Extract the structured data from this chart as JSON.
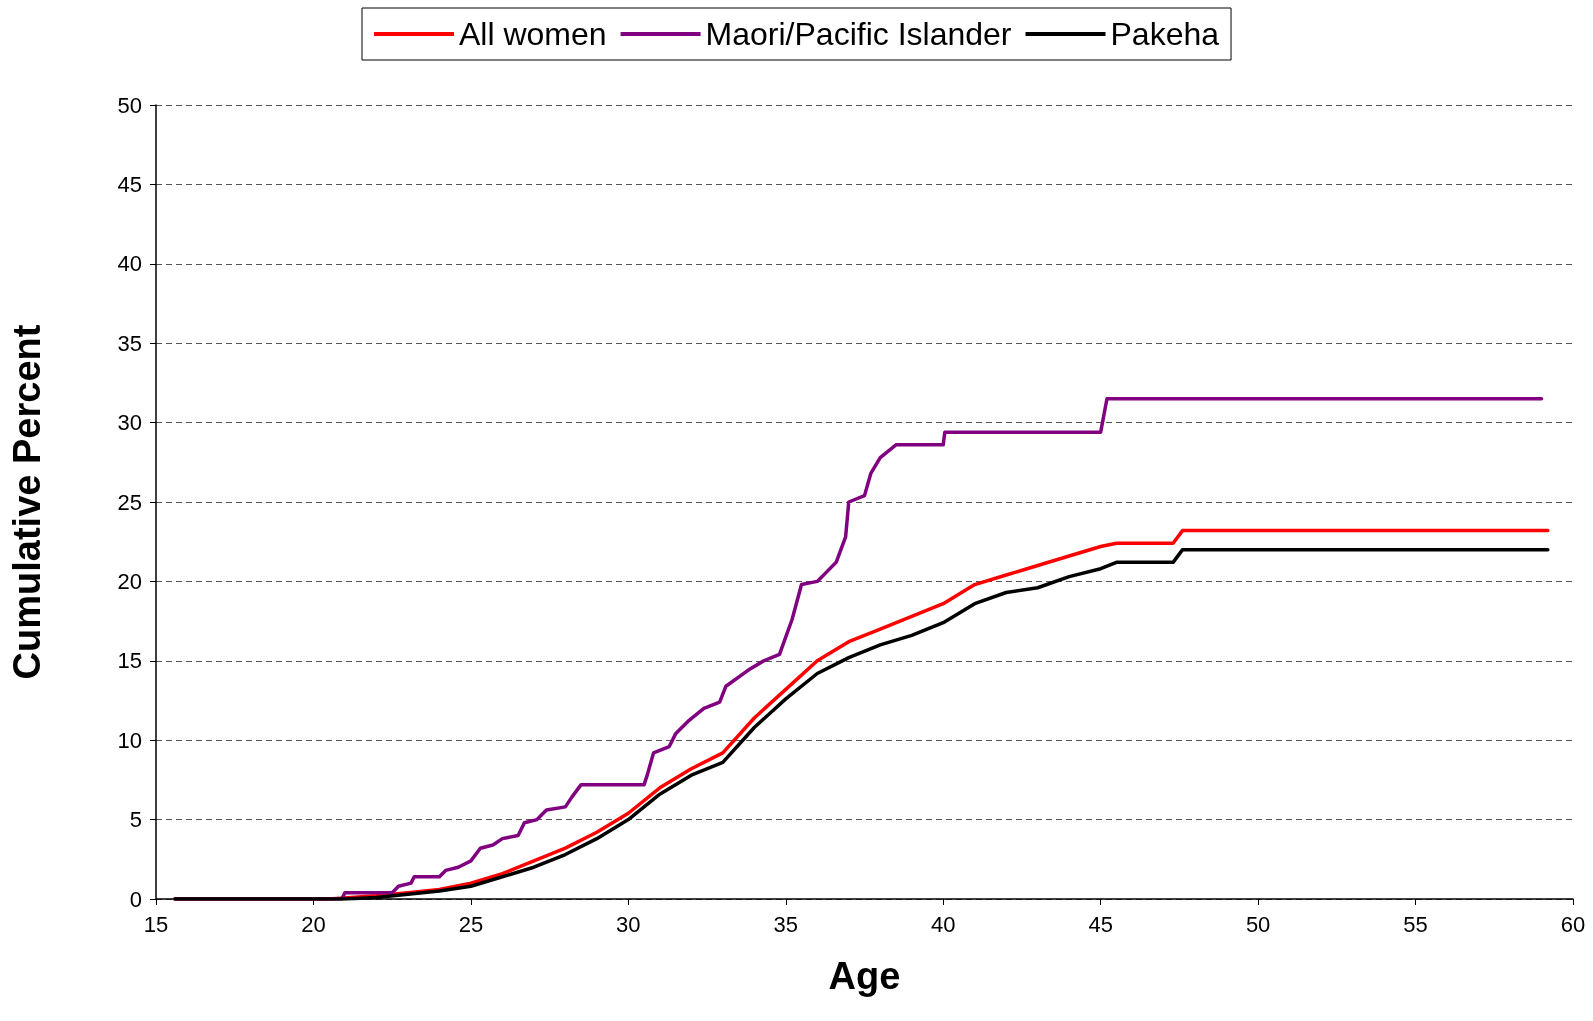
{
  "chart_data": {
    "type": "line",
    "xlabel": "Age",
    "ylabel": "Cumulative Percent",
    "xlim": [
      15,
      60
    ],
    "xticks": [
      15,
      20,
      25,
      30,
      35,
      40,
      45,
      50,
      55,
      60
    ],
    "ylim": [
      0,
      50
    ],
    "yticks": [
      0,
      5,
      10,
      15,
      20,
      25,
      30,
      35,
      40,
      45,
      50
    ],
    "grid": "y",
    "legend": "top",
    "marker": "none",
    "series": [
      {
        "name": "All women",
        "color": "#ff0000",
        "x": [
          15.6,
          20.5,
          22,
          23,
          24,
          25,
          26,
          27,
          28,
          29,
          30,
          31,
          32,
          33,
          34,
          35,
          36,
          37,
          38,
          39,
          40,
          41,
          42,
          43,
          44,
          45,
          45.5,
          47.3,
          47.6,
          59.2
        ],
        "values": [
          0,
          0,
          0.2,
          0.4,
          0.6,
          1.0,
          1.6,
          2.4,
          3.2,
          4.2,
          5.4,
          7.0,
          8.2,
          9.2,
          11.4,
          13.2,
          15.0,
          16.2,
          17.0,
          17.8,
          18.6,
          19.8,
          20.4,
          21.0,
          21.6,
          22.2,
          22.4,
          22.4,
          23.2,
          23.2
        ]
      },
      {
        "name": "Maori/Pacific Islander",
        "color": "#800080",
        "x": [
          15.6,
          20.9,
          21,
          22.5,
          22.7,
          23.1,
          23.2,
          24,
          24.2,
          24.6,
          25,
          25.3,
          25.7,
          26,
          26.5,
          26.7,
          27.1,
          27.4,
          28,
          28.2,
          28.5,
          30.5,
          30.6,
          30.8,
          31.3,
          31.5,
          31.9,
          32.4,
          32.9,
          33.1,
          33.8,
          34.3,
          34.8,
          35.2,
          35.5,
          36,
          36.3,
          36.6,
          36.9,
          37,
          37.5,
          37.7,
          38,
          38.5,
          40,
          40.05,
          45,
          45.2,
          59
        ],
        "values": [
          0,
          0,
          0.4,
          0.4,
          0.8,
          1.0,
          1.4,
          1.4,
          1.8,
          2.0,
          2.4,
          3.2,
          3.4,
          3.8,
          4.0,
          4.8,
          5.0,
          5.6,
          5.8,
          6.4,
          7.2,
          7.2,
          7.8,
          9.2,
          9.6,
          10.4,
          11.2,
          12.0,
          12.4,
          13.4,
          14.4,
          15.0,
          15.4,
          17.6,
          19.8,
          20.0,
          20.6,
          21.2,
          22.8,
          25.0,
          25.4,
          26.8,
          27.8,
          28.6,
          28.6,
          29.4,
          29.4,
          31.5,
          31.5
        ]
      },
      {
        "name": "Pakeha",
        "color": "#000000",
        "x": [
          15.6,
          21,
          22,
          23,
          24,
          25,
          26,
          27,
          28,
          29,
          30,
          31,
          32,
          33,
          34,
          35,
          36,
          37,
          38,
          39,
          40,
          41,
          42,
          43,
          44,
          45,
          45.5,
          47.3,
          47.6,
          59.2
        ],
        "values": [
          0,
          0,
          0.1,
          0.3,
          0.5,
          0.8,
          1.4,
          2.0,
          2.8,
          3.8,
          5.0,
          6.6,
          7.8,
          8.6,
          10.8,
          12.6,
          14.2,
          15.2,
          16.0,
          16.6,
          17.4,
          18.6,
          19.3,
          19.6,
          20.3,
          20.8,
          21.2,
          21.2,
          22.0,
          22.0
        ]
      }
    ]
  }
}
